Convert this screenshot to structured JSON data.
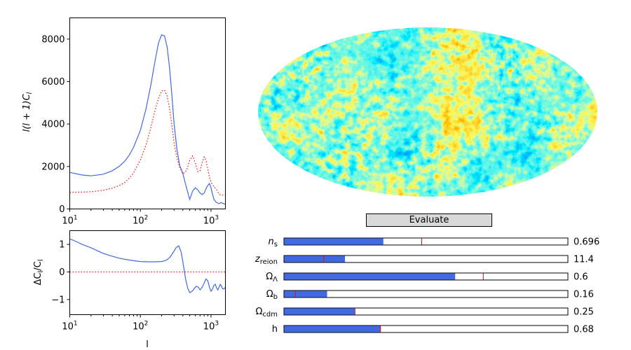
{
  "evaluate_button": {
    "label": "Evaluate"
  },
  "colors": {
    "model_line": "#4169e1",
    "reference_line": "#ff0000",
    "slider_fill": "#4169e1",
    "slider_marker": "#ff0000",
    "button_bg": "#d9d9d9"
  },
  "sliders": [
    {
      "symbol": "n",
      "sub": "s",
      "value_text": "0.696",
      "fill_fraction": 0.35,
      "marker_fraction": 0.485
    },
    {
      "symbol": "z",
      "sub": "reion",
      "value_text": "11.4",
      "fill_fraction": 0.215,
      "marker_fraction": 0.14
    },
    {
      "symbol": "Ω",
      "sub": "Λ",
      "value_text": "0.6",
      "fill_fraction": 0.603,
      "marker_fraction": 0.702
    },
    {
      "symbol": "Ω",
      "sub": "b",
      "value_text": "0.16",
      "fill_fraction": 0.152,
      "marker_fraction": 0.04
    },
    {
      "symbol": "Ω",
      "sub": "cdm",
      "value_text": "0.25",
      "fill_fraction": 0.25,
      "marker_fraction": 0.25
    },
    {
      "symbol": "h",
      "sub": "",
      "value_text": "0.68",
      "fill_fraction": 0.34,
      "marker_fraction": 0.34
    }
  ],
  "chart_data": [
    {
      "type": "line",
      "xscale": "log",
      "xlim": [
        10,
        1600
      ],
      "ylim": [
        0,
        9000
      ],
      "xlabel": "",
      "ylabel": "l(l + 1)C_l",
      "yticks": [
        "0",
        "2000",
        "4000",
        "6000",
        "8000"
      ],
      "xticks": [
        "10¹",
        "10²",
        "10³"
      ],
      "series": [
        {
          "style": "solid",
          "color": "#4169e1",
          "x": [
            10,
            15,
            20,
            30,
            40,
            50,
            60,
            70,
            80,
            100,
            120,
            140,
            160,
            180,
            200,
            220,
            240,
            260,
            280,
            300,
            330,
            360,
            400,
            450,
            500,
            550,
            600,
            650,
            700,
            750,
            800,
            850,
            900,
            950,
            1000,
            1050,
            1100,
            1200,
            1300,
            1400,
            1500,
            1600
          ],
          "y": [
            1720,
            1600,
            1560,
            1640,
            1800,
            2000,
            2250,
            2550,
            2900,
            3700,
            4700,
            5800,
            6900,
            7800,
            8200,
            8150,
            7600,
            6600,
            5300,
            4000,
            2800,
            2050,
            1650,
            1000,
            450,
            850,
            1000,
            900,
            750,
            680,
            750,
            950,
            1100,
            1200,
            1000,
            700,
            450,
            300,
            250,
            300,
            250,
            220
          ]
        },
        {
          "style": "dotted",
          "color": "#ff0000",
          "x": [
            10,
            15,
            20,
            30,
            40,
            50,
            60,
            70,
            80,
            100,
            120,
            140,
            160,
            180,
            200,
            220,
            240,
            260,
            280,
            300,
            330,
            360,
            400,
            450,
            500,
            550,
            600,
            650,
            700,
            750,
            800,
            850,
            900,
            950,
            1000,
            1050,
            1100,
            1200,
            1300,
            1400,
            1500,
            1600
          ],
          "y": [
            780,
            790,
            810,
            880,
            980,
            1100,
            1250,
            1450,
            1700,
            2300,
            3000,
            3800,
            4600,
            5200,
            5550,
            5600,
            5300,
            4700,
            3900,
            3100,
            2400,
            1950,
            1650,
            1800,
            2300,
            2500,
            2150,
            1750,
            1800,
            2200,
            2450,
            2300,
            1900,
            1500,
            1250,
            1150,
            1050,
            900,
            700,
            650,
            650,
            650
          ]
        }
      ]
    },
    {
      "type": "line",
      "xscale": "log",
      "xlim": [
        10,
        1600
      ],
      "ylim": [
        -1.55,
        1.5
      ],
      "xlabel": "l",
      "ylabel": "ΔC_l/C_l",
      "yticks": [
        "−1",
        "0",
        "1"
      ],
      "xticks": [
        "10¹",
        "10²",
        "10³"
      ],
      "series": [
        {
          "style": "solid",
          "color": "#4169e1",
          "x": [
            10,
            12,
            15,
            20,
            25,
            30,
            40,
            50,
            60,
            80,
            100,
            130,
            160,
            200,
            230,
            260,
            290,
            320,
            350,
            380,
            410,
            440,
            470,
            500,
            540,
            580,
            620,
            660,
            700,
            750,
            800,
            850,
            900,
            950,
            1000,
            1050,
            1100,
            1150,
            1200,
            1250,
            1300,
            1350,
            1400,
            1450,
            1500,
            1550,
            1600
          ],
          "y": [
            1.2,
            1.12,
            1.0,
            0.88,
            0.76,
            0.67,
            0.57,
            0.5,
            0.46,
            0.41,
            0.38,
            0.37,
            0.37,
            0.38,
            0.42,
            0.52,
            0.7,
            0.88,
            0.95,
            0.7,
            0.2,
            -0.3,
            -0.6,
            -0.75,
            -0.7,
            -0.6,
            -0.52,
            -0.55,
            -0.65,
            -0.55,
            -0.4,
            -0.25,
            -0.32,
            -0.55,
            -0.7,
            -0.62,
            -0.48,
            -0.45,
            -0.58,
            -0.65,
            -0.55,
            -0.45,
            -0.5,
            -0.6,
            -0.62,
            -0.6,
            -0.55
          ]
        },
        {
          "style": "dotted",
          "color": "#ff0000",
          "x": [
            10,
            1600
          ],
          "y": [
            0,
            0
          ]
        }
      ]
    }
  ]
}
